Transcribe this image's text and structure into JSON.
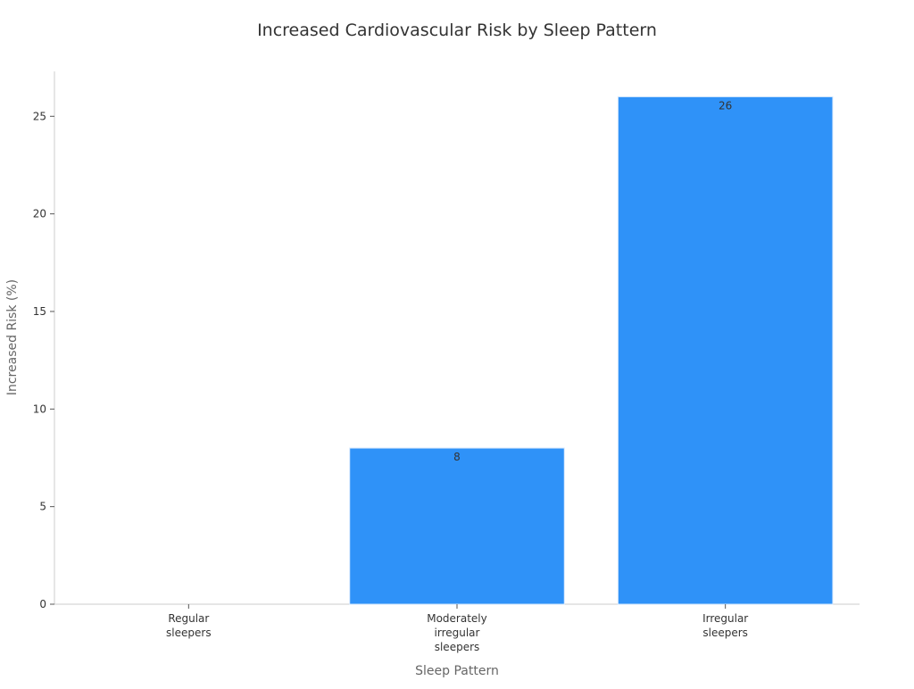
{
  "chart_data": {
    "type": "bar",
    "title": "Increased Cardiovascular Risk by Sleep Pattern",
    "xlabel": "Sleep Pattern",
    "ylabel": "Increased Risk (%)",
    "categories": [
      [
        "Regular",
        "sleepers"
      ],
      [
        "Moderately",
        "irregular",
        "sleepers"
      ],
      [
        "Irregular",
        "sleepers"
      ]
    ],
    "values": [
      0,
      8,
      26
    ],
    "data_labels": [
      "",
      "8",
      "26"
    ],
    "ylim": [
      0,
      27.3
    ],
    "yticks": [
      0,
      5,
      10,
      15,
      20,
      25
    ],
    "grid": false,
    "bar_color": "#2f92f8"
  }
}
